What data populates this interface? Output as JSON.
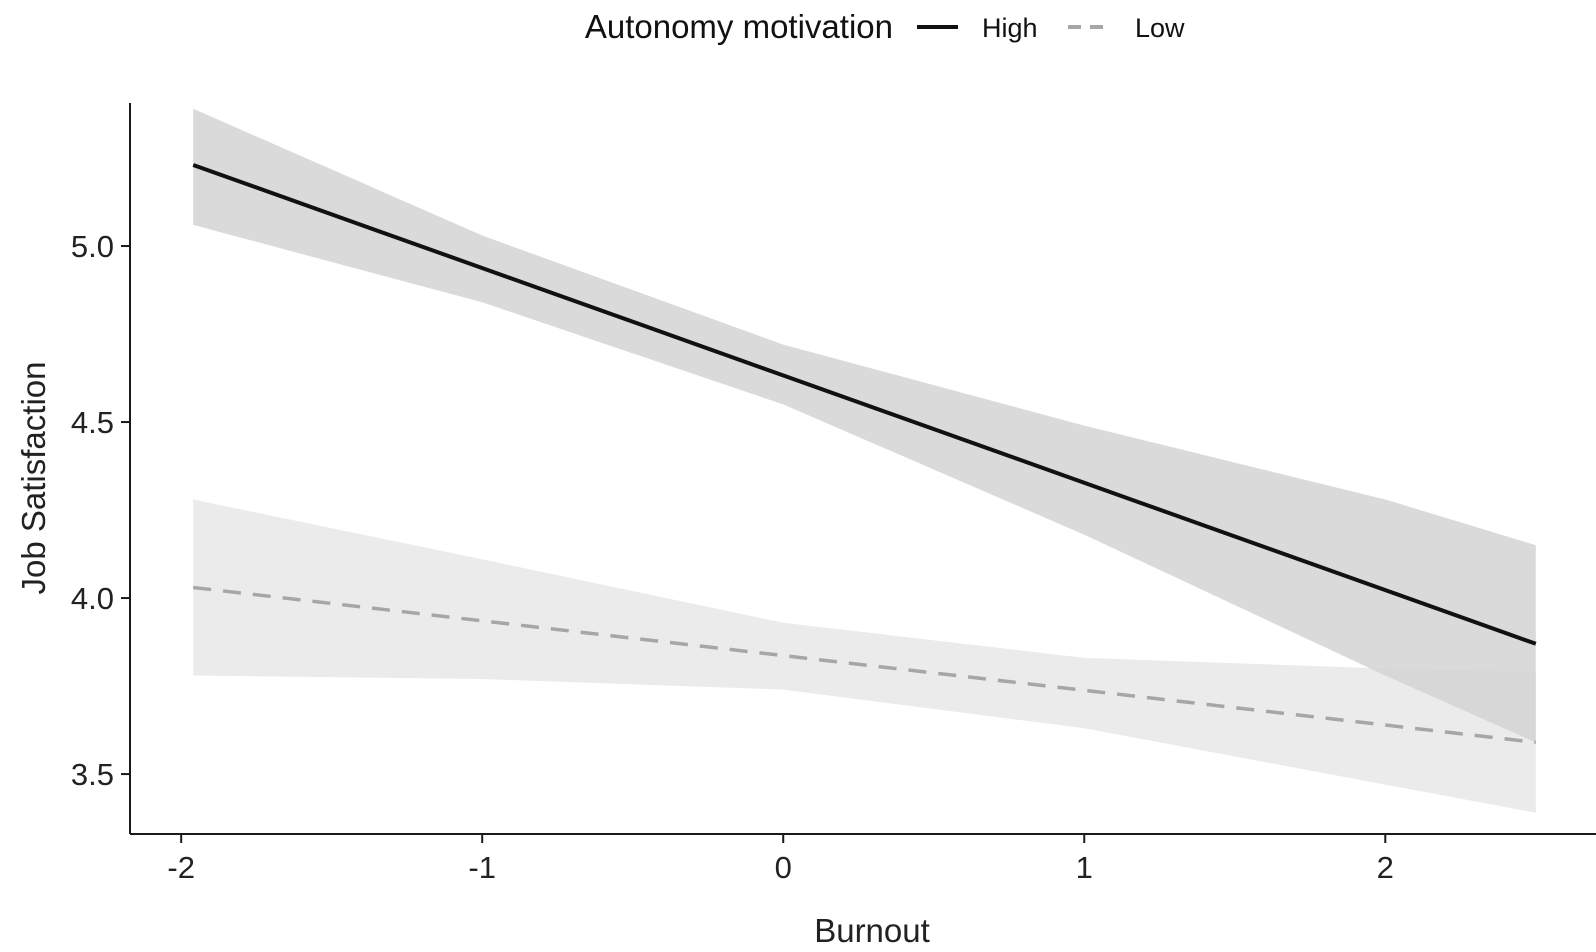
{
  "chart_data": {
    "type": "line",
    "xlabel": "Burnout",
    "ylabel": "Job Satisfaction",
    "xlim": [
      -2.17,
      2.7
    ],
    "ylim": [
      3.29,
      5.5
    ],
    "x_ticks": [
      -2,
      -1,
      0,
      1,
      2
    ],
    "x_tick_labels": [
      "-2",
      "-1",
      "0",
      "1",
      "2"
    ],
    "y_ticks": [
      3.5,
      4.0,
      4.5,
      5.0
    ],
    "y_tick_labels": [
      "3.5",
      "4.0",
      "4.5",
      "5.0"
    ],
    "grid": false,
    "legend": {
      "title": "Autonomy motivation",
      "position": "top",
      "entries": [
        "High",
        "Low"
      ]
    },
    "series": [
      {
        "name": "High",
        "line_style": "solid",
        "color": "#111111",
        "band_color": "#d3d3d3",
        "x": [
          -1.96,
          2.5
        ],
        "y": [
          5.23,
          3.87
        ],
        "band": {
          "x": [
            -1.96,
            -1.0,
            0.0,
            1.0,
            2.0,
            2.5
          ],
          "lower": [
            5.06,
            4.84,
            4.55,
            4.18,
            3.78,
            3.59
          ],
          "upper": [
            5.39,
            5.03,
            4.72,
            4.49,
            4.28,
            4.15
          ]
        }
      },
      {
        "name": "Low",
        "line_style": "dashed",
        "color": "#a6a6a6",
        "band_color": "#ebebeb",
        "x": [
          -1.96,
          2.5
        ],
        "y": [
          4.03,
          3.59
        ],
        "band": {
          "x": [
            -1.96,
            -1.0,
            0.0,
            1.0,
            2.0,
            2.5
          ],
          "lower": [
            3.78,
            3.77,
            3.74,
            3.63,
            3.47,
            3.39
          ],
          "upper": [
            4.28,
            4.11,
            3.93,
            3.83,
            3.8,
            3.79
          ]
        }
      }
    ]
  }
}
